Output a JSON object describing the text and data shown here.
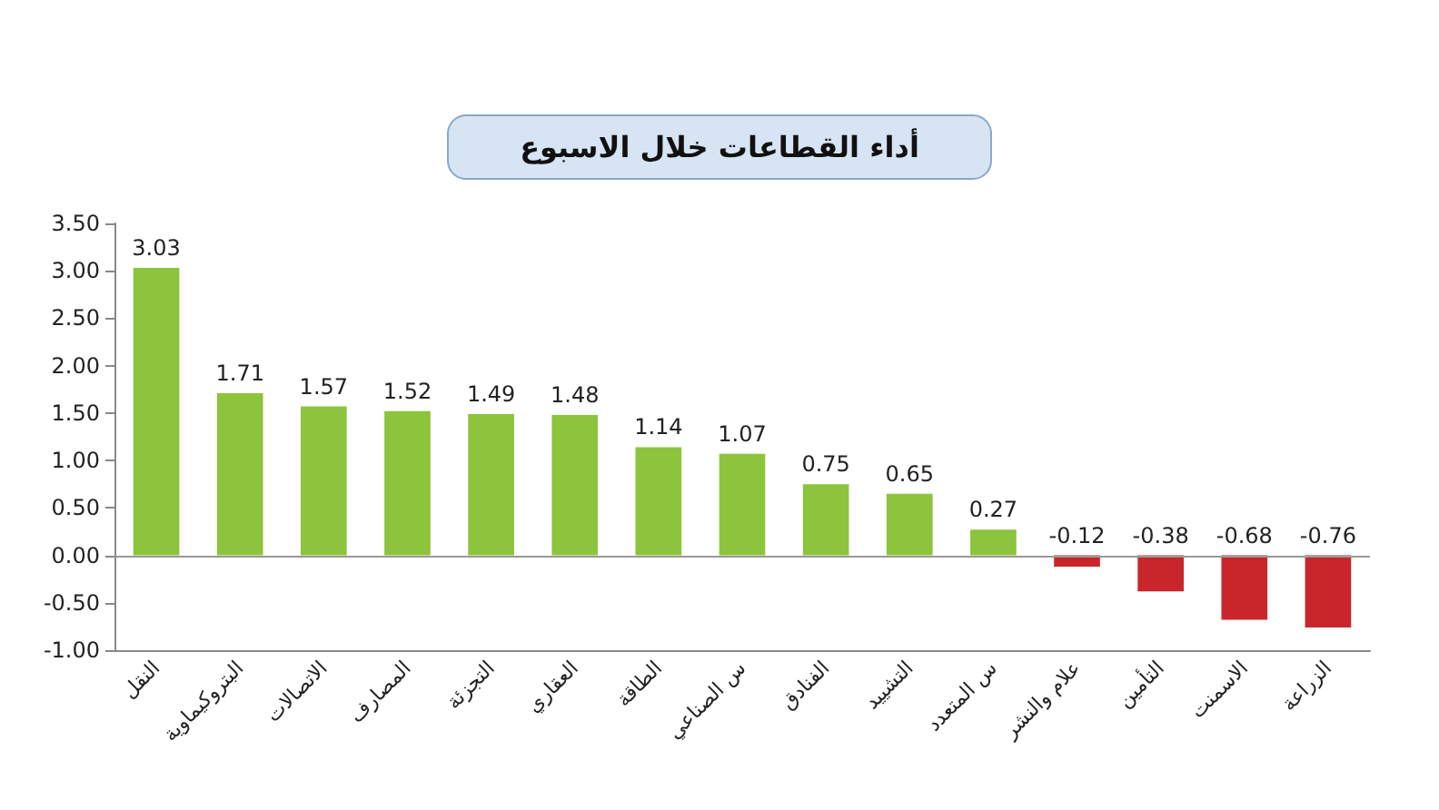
{
  "chart_data": {
    "type": "bar",
    "title": "أداء القطاعات خلال الاسبوع",
    "categories": [
      "النقل",
      "البتروكيماوية",
      "الاتصالات",
      "المصارف",
      "التجزئة",
      "العقاري",
      "الطاقة",
      "س الصناعي",
      "الفنادق",
      "التشييد",
      "س المتعدد",
      "علام والنشر",
      "التأمين",
      "الاسمنت",
      "الزراعة"
    ],
    "values": [
      3.03,
      1.71,
      1.57,
      1.52,
      1.49,
      1.48,
      1.14,
      1.07,
      0.75,
      0.65,
      0.27,
      -0.12,
      -0.38,
      -0.68,
      -0.76
    ],
    "colors": [
      "#8cc43c",
      "#8cc43c",
      "#8cc43c",
      "#8cc43c",
      "#8cc43c",
      "#8cc43c",
      "#8cc43c",
      "#8cc43c",
      "#8cc43c",
      "#8cc43c",
      "#8cc43c",
      "#c8262b",
      "#c8262b",
      "#c8262b",
      "#c8262b"
    ],
    "ylim": [
      -1,
      3.5
    ],
    "yticks": [
      {
        "value": -1,
        "label": "-1.00"
      },
      {
        "value": -0.5,
        "label": "-0.50"
      },
      {
        "value": 0,
        "label": "0.00"
      },
      {
        "value": 0.5,
        "label": "0.50"
      },
      {
        "value": 1,
        "label": "1.00"
      },
      {
        "value": 1.5,
        "label": "1.50"
      },
      {
        "value": 2,
        "label": "2.00"
      },
      {
        "value": 2.5,
        "label": "2.50"
      },
      {
        "value": 3,
        "label": "3.00"
      },
      {
        "value": 3.5,
        "label": "3.50"
      }
    ],
    "data_labels": true,
    "grid": false,
    "ref_lines": [
      {
        "axis": "y",
        "value": 0,
        "color": "#999999"
      }
    ]
  }
}
